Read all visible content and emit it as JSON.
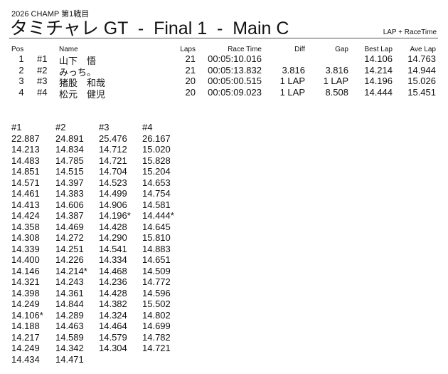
{
  "header": {
    "subtitle": "2026  CHAMP 第1戦目",
    "title": "タミチャレ GT  -  Final 1  -  Main C",
    "mode": "LAP + RaceTime"
  },
  "results": {
    "columns": {
      "pos": "Pos",
      "name": "Name",
      "laps": "Laps",
      "race_time": "Race Time",
      "diff": "Diff",
      "gap": "Gap",
      "best_lap": "Best Lap",
      "ave_lap": "Ave Lap"
    },
    "rows": [
      {
        "pos": "1",
        "no": "#1",
        "name": "山下　悟",
        "laps": "21",
        "race_time": "00:05:10.016",
        "diff": "",
        "gap": "",
        "best_lap": "14.106",
        "ave_lap": "14.763"
      },
      {
        "pos": "2",
        "no": "#2",
        "name": "みっち。",
        "laps": "21",
        "race_time": "00:05:13.832",
        "diff": "3.816",
        "gap": "3.816",
        "best_lap": "14.214",
        "ave_lap": "14.944"
      },
      {
        "pos": "3",
        "no": "#3",
        "name": "猪股　和哉",
        "laps": "20",
        "race_time": "00:05:00.515",
        "diff": "1 LAP",
        "gap": "1 LAP",
        "best_lap": "14.196",
        "ave_lap": "15.026"
      },
      {
        "pos": "4",
        "no": "#4",
        "name": "松元　健児",
        "laps": "20",
        "race_time": "00:05:09.023",
        "diff": "1 LAP",
        "gap": "8.508",
        "best_lap": "14.444",
        "ave_lap": "15.451"
      }
    ]
  },
  "lap_times": {
    "headers": [
      "#1",
      "#2",
      "#3",
      "#4"
    ],
    "columns": [
      [
        "22.887",
        "14.213",
        "14.483",
        "14.851",
        "14.571",
        "14.461",
        "14.413",
        "14.424",
        "14.358",
        "14.308",
        "14.339",
        "14.400",
        "14.146",
        "14.321",
        "14.398",
        "14.249",
        "14.106*",
        "14.188",
        "14.217",
        "14.249",
        "14.434"
      ],
      [
        "24.891",
        "14.834",
        "14.785",
        "14.515",
        "14.397",
        "14.383",
        "14.606",
        "14.387",
        "14.469",
        "14.272",
        "14.251",
        "14.226",
        "14.214*",
        "14.243",
        "14.361",
        "14.844",
        "14.289",
        "14.463",
        "14.589",
        "14.342",
        "14.471"
      ],
      [
        "25.476",
        "14.712",
        "14.721",
        "14.704",
        "14.523",
        "14.499",
        "14.906",
        "14.196*",
        "14.428",
        "14.290",
        "14.541",
        "14.334",
        "14.468",
        "14.236",
        "14.428",
        "14.382",
        "14.324",
        "14.464",
        "14.579",
        "14.304"
      ],
      [
        "26.167",
        "15.020",
        "15.828",
        "15.204",
        "14.653",
        "14.754",
        "14.581",
        "14.444*",
        "14.645",
        "15.810",
        "14.883",
        "14.651",
        "14.509",
        "14.772",
        "14.596",
        "15.502",
        "14.802",
        "14.699",
        "14.782",
        "14.721"
      ]
    ]
  }
}
